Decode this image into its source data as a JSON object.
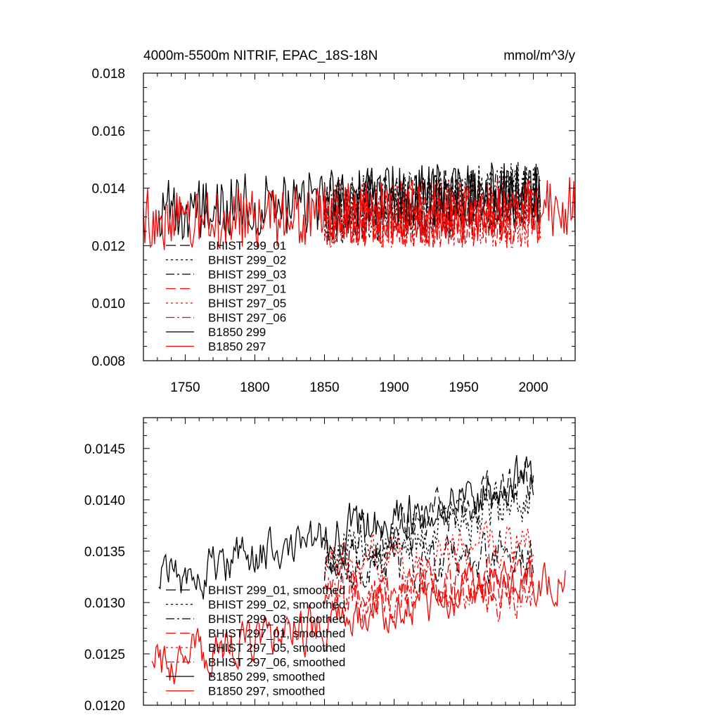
{
  "chart_data": [
    {
      "type": "line",
      "title_left": "4000m-5500m NITRIF, EPAC_18S-18N",
      "title_right": "mmol/m^3/y",
      "xlim": [
        1720,
        2030
      ],
      "ylim": [
        0.008,
        0.018
      ],
      "x_ticks": [
        1750,
        1800,
        1850,
        1900,
        1950,
        2000
      ],
      "x_tick_labels": [
        "1750",
        "1800",
        "1850",
        "1900",
        "1950",
        "2000"
      ],
      "y_ticks": [
        0.008,
        0.01,
        0.012,
        0.014,
        0.016,
        0.018
      ],
      "y_tick_labels": [
        "0.008",
        "0.010",
        "0.012",
        "0.014",
        "0.016",
        "0.018"
      ],
      "legend_position": "lower-left",
      "series": [
        {
          "name": "BHIST 299_01",
          "color": "#000000",
          "dash": "longdash",
          "x_start": 1850,
          "x_end": 2005,
          "mean_start": 0.0132,
          "mean_end": 0.0136,
          "amplitude": 0.0012,
          "seed": 11
        },
        {
          "name": "BHIST 299_02",
          "color": "#000000",
          "dash": "dot",
          "x_start": 1850,
          "x_end": 2005,
          "mean_start": 0.0132,
          "mean_end": 0.0138,
          "amplitude": 0.0012,
          "seed": 12
        },
        {
          "name": "BHIST 299_03",
          "color": "#000000",
          "dash": "dashdot",
          "x_start": 1850,
          "x_end": 2005,
          "mean_start": 0.0132,
          "mean_end": 0.0137,
          "amplitude": 0.0012,
          "seed": 13
        },
        {
          "name": "BHIST 297_01",
          "color": "#ff0000",
          "dash": "longdash",
          "x_start": 1850,
          "x_end": 2005,
          "mean_start": 0.0131,
          "mean_end": 0.0131,
          "amplitude": 0.0012,
          "seed": 21
        },
        {
          "name": "BHIST 297_05",
          "color": "#ff0000",
          "dash": "dot",
          "x_start": 1850,
          "x_end": 2005,
          "mean_start": 0.0131,
          "mean_end": 0.0132,
          "amplitude": 0.0012,
          "seed": 22
        },
        {
          "name": "BHIST 297_06",
          "color": "#ff0000",
          "dash": "dashdot",
          "x_start": 1850,
          "x_end": 2005,
          "mean_start": 0.0131,
          "mean_end": 0.0131,
          "amplitude": 0.0012,
          "seed": 23
        },
        {
          "name": "B1850 299",
          "color": "#000000",
          "dash": "solid",
          "x_start": 1731,
          "x_end": 2005,
          "mean_start": 0.0133,
          "mean_end": 0.0139,
          "amplitude": 0.0011,
          "seed": 31
        },
        {
          "name": "B1850 297",
          "color": "#ff0000",
          "dash": "solid",
          "x_start": 1720,
          "x_end": 2030,
          "mean_start": 0.0129,
          "mean_end": 0.0133,
          "amplitude": 0.0011,
          "seed": 32
        }
      ]
    },
    {
      "type": "line",
      "xlim": [
        1720,
        2030
      ],
      "ylim": [
        0.012,
        0.0148
      ],
      "x_ticks": [
        1750,
        1800,
        1850,
        1900,
        1950,
        2000
      ],
      "y_ticks": [
        0.012,
        0.0125,
        0.013,
        0.0135,
        0.014,
        0.0145
      ],
      "y_tick_labels": [
        "0.0120",
        "0.0125",
        "0.0130",
        "0.0135",
        "0.0140",
        "0.0145"
      ],
      "legend_position": "lower-left",
      "series": [
        {
          "name": "BHIST 299_01, smoothed",
          "color": "#000000",
          "dash": "longdash",
          "x_start": 1850,
          "x_end": 2000,
          "mean_start": 0.0134,
          "mean_end": 0.0142,
          "amplitude": 0.0004,
          "seed": 41
        },
        {
          "name": "BHIST 299_02, smoothed",
          "color": "#000000",
          "dash": "dot",
          "x_start": 1850,
          "x_end": 2000,
          "mean_start": 0.0134,
          "mean_end": 0.014,
          "amplitude": 0.0004,
          "seed": 42
        },
        {
          "name": "BHIST 299_03, smoothed",
          "color": "#000000",
          "dash": "dashdot",
          "x_start": 1850,
          "x_end": 2000,
          "mean_start": 0.0133,
          "mean_end": 0.0135,
          "amplitude": 0.0004,
          "seed": 43
        },
        {
          "name": "BHIST 297_01, smoothed",
          "color": "#ff0000",
          "dash": "longdash",
          "x_start": 1850,
          "x_end": 2000,
          "mean_start": 0.0131,
          "mean_end": 0.0132,
          "amplitude": 0.0004,
          "seed": 51
        },
        {
          "name": "BHIST 297_05, smoothed",
          "color": "#ff0000",
          "dash": "dot",
          "x_start": 1850,
          "x_end": 2000,
          "mean_start": 0.0133,
          "mean_end": 0.0136,
          "amplitude": 0.0004,
          "seed": 52
        },
        {
          "name": "BHIST 297_06, smoothed",
          "color": "#ff0000",
          "dash": "dashdot",
          "x_start": 1850,
          "x_end": 2000,
          "mean_start": 0.0131,
          "mean_end": 0.0131,
          "amplitude": 0.0004,
          "seed": 53
        },
        {
          "name": "B1850 299, smoothed",
          "color": "#000000",
          "dash": "solid",
          "x_start": 1731,
          "x_end": 2000,
          "mean_start": 0.0132,
          "mean_end": 0.0142,
          "amplitude": 0.0004,
          "seed": 61
        },
        {
          "name": "B1850 297, smoothed",
          "color": "#ff0000",
          "dash": "solid",
          "x_start": 1726,
          "x_end": 2023,
          "mean_start": 0.0124,
          "mean_end": 0.0133,
          "amplitude": 0.0004,
          "seed": 62
        }
      ]
    }
  ]
}
